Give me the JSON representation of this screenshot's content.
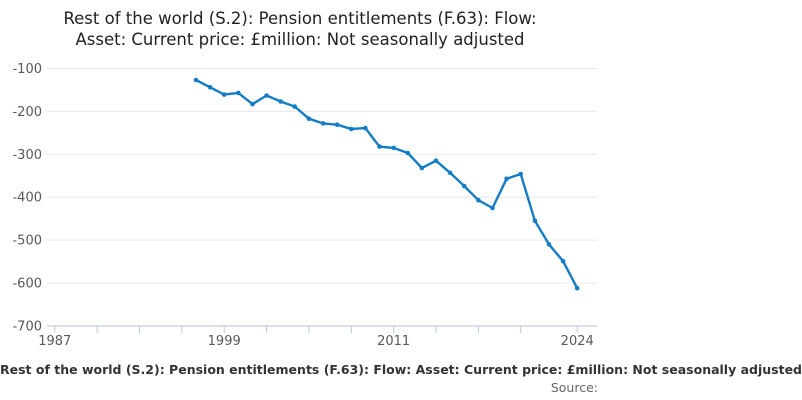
{
  "title": {
    "line1": "Rest of the world (S.2): Pension entitlements (F.63): Flow:",
    "line2": "Asset: Current price: £million: Not seasonally adjusted"
  },
  "footer": {
    "series_label": "Rest of the world (S.2): Pension entitlements (F.63): Flow: Asset: Current price: £million: Not seasonally adjusted",
    "source_label": "Source:"
  },
  "colors": {
    "line": "#147dc5",
    "marker": "#147dc5",
    "grid": "#e8e8e8",
    "axis": "#c2cedf",
    "tick": "#b9c7db",
    "axis_label": "#595959",
    "title": "#222222"
  },
  "chart_data": {
    "type": "line",
    "title": "Rest of the world (S.2): Pension entitlements (F.63): Flow: Asset: Current price: £million: Not seasonally adjusted",
    "xlabel": "",
    "ylabel": "",
    "grid": true,
    "legend": "none",
    "xlim": [
      1986.45,
      2025.4
    ],
    "ylim": [
      -700,
      -85
    ],
    "y_ticks": [
      -100,
      -200,
      -300,
      -400,
      -500,
      -600,
      -700
    ],
    "x_ticks": [
      1987,
      1990,
      1993,
      1996,
      1999,
      2002,
      2005,
      2008,
      2011,
      2014,
      2017,
      2020,
      2024
    ],
    "x_tick_labels": [
      1987,
      1999,
      2011,
      2024
    ],
    "series": [
      {
        "name": "Rest of the world (S.2): Pension entitlements (F.63)",
        "x": [
          1997,
          1998,
          1999,
          2000,
          2001,
          2002,
          2003,
          2004,
          2005,
          2006,
          2007,
          2008,
          2009,
          2010,
          2011,
          2012,
          2013,
          2014,
          2015,
          2016,
          2017,
          2018,
          2019,
          2020,
          2021,
          2022,
          2023,
          2024
        ],
        "values": [
          -127,
          -144,
          -161,
          -157,
          -183,
          -163,
          -177,
          -189,
          -217,
          -228,
          -231,
          -241,
          -239,
          -282,
          -285,
          -297,
          -332,
          -315,
          -343,
          -374,
          -407,
          -425,
          -357,
          -346,
          -455,
          -510,
          -549,
          -612
        ]
      }
    ]
  }
}
